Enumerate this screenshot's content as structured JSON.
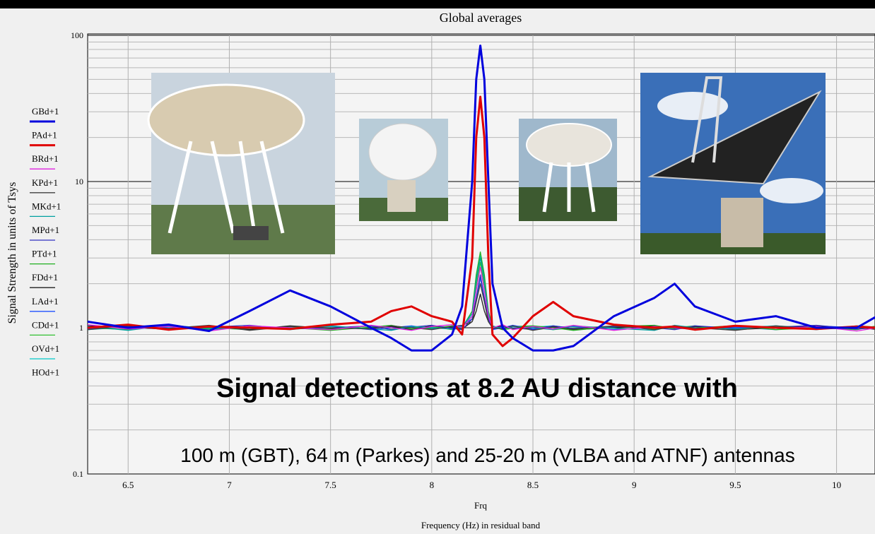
{
  "chart_data": {
    "type": "line",
    "title": "Global averages",
    "x_label_short": "Frq",
    "x_label": "Frequency (Hz) in residual band",
    "y_label": "Signal Strength in units of Tsys",
    "log_y": true,
    "grid": true,
    "legend_position": "left",
    "annotations": [
      "Signal detections at 8.2 AU distance with",
      "100 m (GBT), 64 m (Parkes) and 25-20 m (VLBA and ATNF) antennas"
    ],
    "xlim": [
      6.3,
      10.19
    ],
    "xticks": [
      6.5,
      7,
      7.5,
      8,
      8.5,
      9,
      9.5,
      10
    ],
    "ylim": [
      0.1,
      100
    ],
    "yticks": [
      0.1,
      1,
      10,
      100
    ],
    "x": [
      6.3,
      6.5,
      6.7,
      6.9,
      7.1,
      7.3,
      7.5,
      7.7,
      7.8,
      7.9,
      8.0,
      8.1,
      8.15,
      8.2,
      8.22,
      8.24,
      8.26,
      8.28,
      8.3,
      8.35,
      8.4,
      8.5,
      8.6,
      8.7,
      8.9,
      9.1,
      9.2,
      9.3,
      9.5,
      9.7,
      9.9,
      10.1,
      10.2
    ],
    "series": [
      {
        "name": "GBd+1",
        "color": "#0000dd",
        "values": [
          1.1,
          1.0,
          1.05,
          0.95,
          1.3,
          1.8,
          1.4,
          1.0,
          0.85,
          0.7,
          0.7,
          0.9,
          1.4,
          10,
          50,
          85,
          50,
          10,
          2,
          1.0,
          0.85,
          0.7,
          0.7,
          0.75,
          1.2,
          1.6,
          2.0,
          1.4,
          1.1,
          1.2,
          1.0,
          1.0,
          1.2
        ]
      },
      {
        "name": "PAd+1",
        "color": "#e00000",
        "values": [
          1.0,
          1.05,
          0.97,
          1.02,
          1.0,
          0.98,
          1.05,
          1.1,
          1.3,
          1.4,
          1.2,
          1.1,
          0.9,
          3,
          20,
          38,
          20,
          3,
          0.9,
          0.75,
          0.85,
          1.2,
          1.5,
          1.2,
          1.05,
          1.0,
          1.02,
          0.97,
          1.03,
          1.0,
          0.98,
          1.02,
          1.0
        ]
      },
      {
        "name": "BRd+1",
        "color": "#e020e0",
        "values": [
          1.05,
          0.98,
          1.02,
          0.95,
          1.03,
          1.0,
          0.97,
          1.04,
          1.0,
          0.96,
          1.02,
          1.05,
          1.0,
          1.2,
          1.8,
          2.6,
          1.8,
          1.2,
          1.0,
          1.05,
          0.97,
          1.02,
          0.98,
          1.04,
          0.96,
          1.02,
          1.0,
          0.97,
          1.03,
          0.99,
          1.02,
          0.95,
          1.0
        ]
      },
      {
        "name": "KPd+1",
        "color": "#404040",
        "values": [
          0.97,
          1.03,
          0.99,
          1.04,
          0.96,
          1.02,
          1.0,
          0.98,
          1.03,
          1.0,
          0.97,
          1.02,
          1.04,
          1.1,
          1.5,
          2.0,
          1.5,
          1.1,
          1.0,
          0.98,
          1.03,
          0.96,
          1.01,
          0.98,
          1.03,
          0.97,
          1.02,
          1.0,
          0.96,
          1.03,
          0.98,
          1.01,
          0.97
        ]
      },
      {
        "name": "MKd+1",
        "color": "#00a0a0",
        "values": [
          1.02,
          0.96,
          1.04,
          0.99,
          1.01,
          0.97,
          1.03,
          0.98,
          0.96,
          1.02,
          1.0,
          0.98,
          1.02,
          1.25,
          2.1,
          3.0,
          2.1,
          1.25,
          1.03,
          0.98,
          1.02,
          1.0,
          0.97,
          1.03,
          0.99,
          0.96,
          1.04,
          1.0,
          0.98,
          1.02,
          0.97,
          1.03,
          1.01
        ]
      },
      {
        "name": "MPd+1",
        "color": "#3030c0",
        "values": [
          0.99,
          1.02,
          0.97,
          1.01,
          1.04,
          0.98,
          1.0,
          1.03,
          0.97,
          1.01,
          1.04,
          0.99,
          0.97,
          1.15,
          1.6,
          2.3,
          1.6,
          1.15,
          0.98,
          1.02,
          1.0,
          0.97,
          1.03,
          0.99,
          1.02,
          1.0,
          0.97,
          1.03,
          0.99,
          1.01,
          1.04,
          0.98,
          1.0
        ]
      },
      {
        "name": "PTd+1",
        "color": "#20b020",
        "values": [
          1.0,
          0.97,
          1.03,
          0.98,
          1.02,
          1.0,
          0.96,
          1.01,
          1.04,
          0.98,
          0.99,
          1.03,
          1.0,
          1.3,
          2.3,
          3.3,
          2.3,
          1.3,
          1.02,
          0.97,
          0.99,
          1.03,
          1.0,
          0.96,
          1.02,
          1.04,
          0.98,
          1.0,
          1.03,
          0.97,
          1.0,
          1.02,
          0.98
        ]
      },
      {
        "name": "FDd+1",
        "color": "#202020",
        "values": [
          1.03,
          1.0,
          0.98,
          1.02,
          0.97,
          1.03,
          0.99,
          1.0,
          1.02,
          0.97,
          1.03,
          1.0,
          0.98,
          1.1,
          1.3,
          1.7,
          1.3,
          1.1,
          1.0,
          1.03,
          0.98,
          1.0,
          1.02,
          0.97,
          1.0,
          1.03,
          0.99,
          1.02,
          0.97,
          1.0,
          1.03,
          0.98,
          1.02
        ]
      },
      {
        "name": "LAd+1",
        "color": "#2050ff",
        "values": [
          0.98,
          1.04,
          1.0,
          0.97,
          1.02,
          0.99,
          1.03,
          0.97,
          1.0,
          1.03,
          0.98,
          1.01,
          1.03,
          1.15,
          1.55,
          2.2,
          1.55,
          1.15,
          0.97,
          1.0,
          1.04,
          0.98,
          1.01,
          1.02,
          0.97,
          1.0,
          1.03,
          0.99,
          1.01,
          0.97,
          1.03,
          1.0,
          0.99
        ]
      },
      {
        "name": "CDd+1",
        "color": "#30c030",
        "values": [
          1.01,
          0.99,
          1.03,
          1.0,
          0.97,
          1.02,
          0.98,
          1.03,
          0.99,
          1.0,
          1.02,
          0.97,
          1.01,
          1.2,
          1.95,
          2.8,
          1.95,
          1.2,
          1.01,
          0.99,
          1.02,
          1.03,
          0.97,
          1.0,
          1.02,
          0.98,
          1.0,
          1.03,
          0.97,
          1.02,
          1.0,
          0.97,
          1.03
        ]
      },
      {
        "name": "OVd+1",
        "color": "#00c8c8",
        "values": [
          0.97,
          1.01,
          1.0,
          1.03,
          0.98,
          1.01,
          1.02,
          0.99,
          1.02,
          0.98,
          1.01,
          1.0,
          0.99,
          1.25,
          2.2,
          3.1,
          2.2,
          1.25,
          0.99,
          1.01,
          0.98,
          1.01,
          1.03,
          0.99,
          1.01,
          0.99,
          1.02,
          0.98,
          1.0,
          1.03,
          0.99,
          1.0,
          1.02
        ]
      },
      {
        "name": "HOd+1",
        "color": null,
        "values": [
          null,
          null,
          null,
          null,
          null,
          null,
          null,
          null,
          null,
          null,
          null,
          null,
          null,
          null,
          null,
          null,
          null,
          null,
          null,
          null,
          null,
          null,
          null,
          null,
          null,
          null,
          null,
          null,
          null,
          null,
          null,
          null,
          null
        ]
      }
    ]
  }
}
